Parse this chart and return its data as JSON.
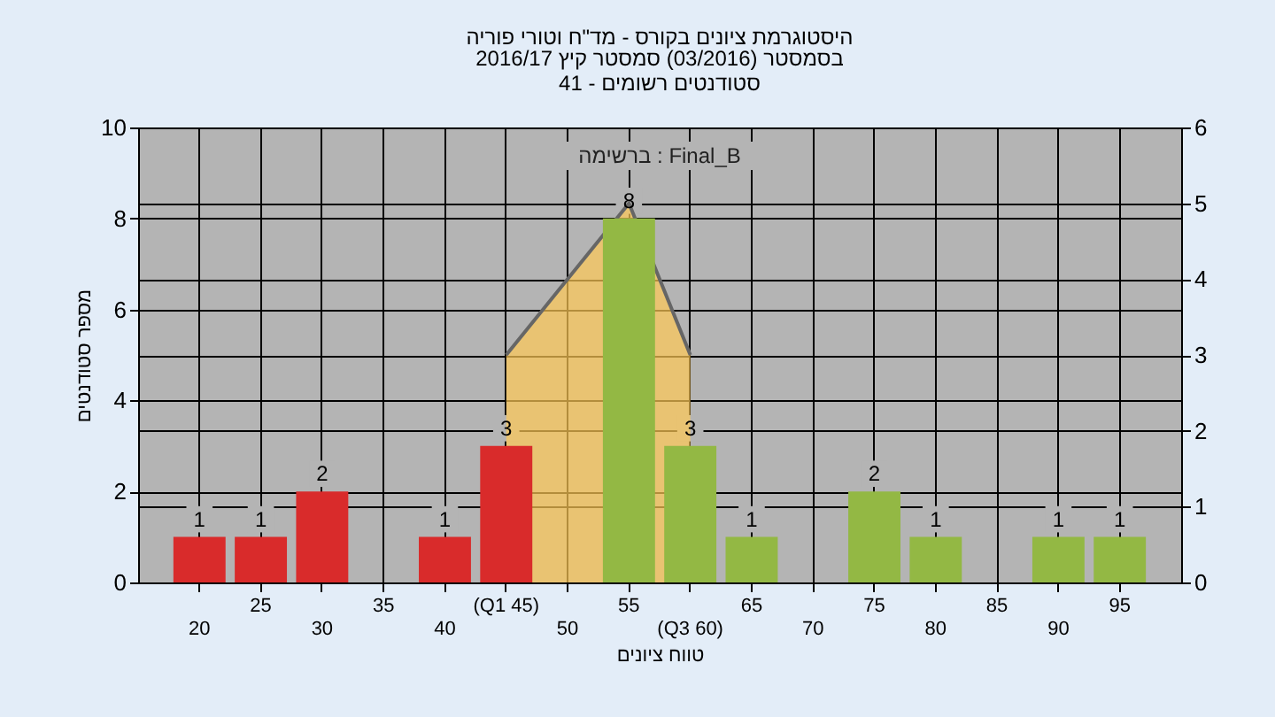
{
  "chart_data": {
    "type": "bar",
    "title": "היסטוגרמת ציונים בקורס - מד\"ח וטורי פוריה",
    "subtitle": [
      "בסמסטר  (03/2016)  סמסטר קיץ 2016/17",
      "סטודנטים רשומים - 41"
    ],
    "xlabel": "טווח ציונים",
    "ylabel": "מספר סטודנטים",
    "annotations": [
      "ברשימה : Final_B"
    ],
    "categories": [
      "20",
      "25",
      "30",
      "35",
      "40",
      "(Q1 45)",
      "50",
      "55",
      "(Q3 60)",
      "65",
      "70",
      "75",
      "80",
      "85",
      "90",
      "95"
    ],
    "series": [
      {
        "type": "bar",
        "values": [
          1,
          1,
          2,
          0,
          1,
          3,
          0,
          8,
          3,
          1,
          0,
          2,
          1,
          0,
          1,
          1
        ],
        "colors": [
          "#d92b2b",
          "#d92b2b",
          "#d92b2b",
          "#d92b2b",
          "#d92b2b",
          "#d92b2b",
          "#d92b2b",
          "#93b844",
          "#93b844",
          "#93b844",
          "#93b844",
          "#93b844",
          "#93b844",
          "#93b844",
          "#93b844",
          "#93b844"
        ],
        "value_labels": [
          "1",
          "1",
          "2",
          null,
          "1",
          "3",
          null,
          "8",
          "3",
          "1",
          null,
          "2",
          "1",
          null,
          "1",
          "1"
        ]
      },
      {
        "type": "area",
        "axis": "y2",
        "color": "#ffc955",
        "values": [
          null,
          null,
          null,
          null,
          null,
          3,
          4,
          5,
          3,
          null,
          null,
          null,
          null,
          null,
          null,
          null
        ]
      }
    ],
    "ylim": [
      0,
      10
    ],
    "yticks": [
      0,
      2,
      4,
      6,
      8,
      10
    ],
    "y2lim": [
      0,
      6
    ],
    "y2ticks": [
      0,
      1,
      2,
      3,
      4,
      5,
      6
    ],
    "grid": true
  }
}
